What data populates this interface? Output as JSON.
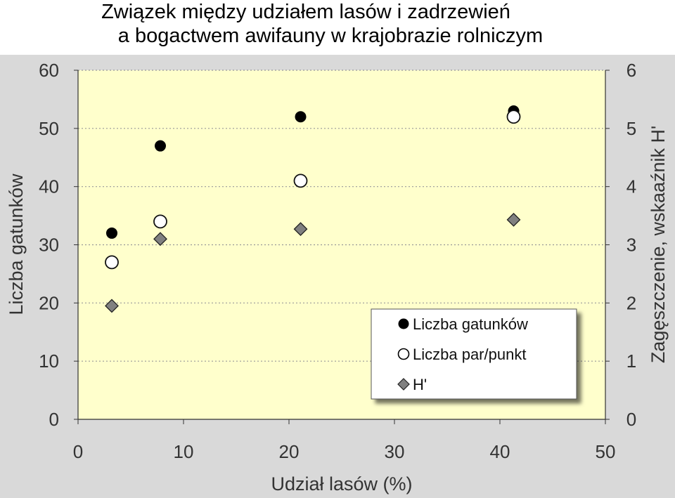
{
  "title_lines": [
    "Związek między udziałem lasów i zadrzewień",
    "a bogactwem awifauny w krajobrazie rolniczym"
  ],
  "colors": {
    "outer_bg": "#d9d9d9",
    "plot_bg": "#ffffcc",
    "grid": "#999999",
    "filled": "#000000",
    "open_fill": "#ffffff",
    "diamond": "#808080"
  },
  "chart_data": {
    "type": "scatter",
    "xlabel": "Udział lasów (%)",
    "ylabel": "Liczba gatunków",
    "y2label": "Zagęszczenie, wskaaźnik H'",
    "xlim": [
      0,
      50
    ],
    "ylim": [
      0,
      60
    ],
    "y2lim": [
      0,
      6
    ],
    "x_ticks": [
      "0",
      "10",
      "20",
      "30",
      "40",
      "50"
    ],
    "y_ticks": [
      "0",
      "10",
      "20",
      "30",
      "40",
      "50",
      "60"
    ],
    "y2_ticks": [
      "0",
      "1",
      "2",
      "3",
      "4",
      "5",
      "6"
    ],
    "grid": "horizontal dotted",
    "legend_position": "bottom-right",
    "series": [
      {
        "name": "Liczba gatunków",
        "axis": "left",
        "marker": "filled-circle",
        "points": [
          [
            3.2,
            32
          ],
          [
            7.8,
            47
          ],
          [
            21.1,
            52
          ],
          [
            41.3,
            53
          ]
        ]
      },
      {
        "name": "Liczba par/punkt",
        "axis": "left",
        "marker": "open-circle",
        "points": [
          [
            3.2,
            27
          ],
          [
            7.8,
            34
          ],
          [
            21.1,
            41
          ],
          [
            41.3,
            52
          ]
        ]
      },
      {
        "name": "H'",
        "axis": "right",
        "marker": "diamond",
        "points": [
          [
            3.2,
            1.95
          ],
          [
            7.8,
            3.1
          ],
          [
            21.1,
            3.27
          ],
          [
            41.3,
            3.43
          ]
        ]
      }
    ]
  }
}
